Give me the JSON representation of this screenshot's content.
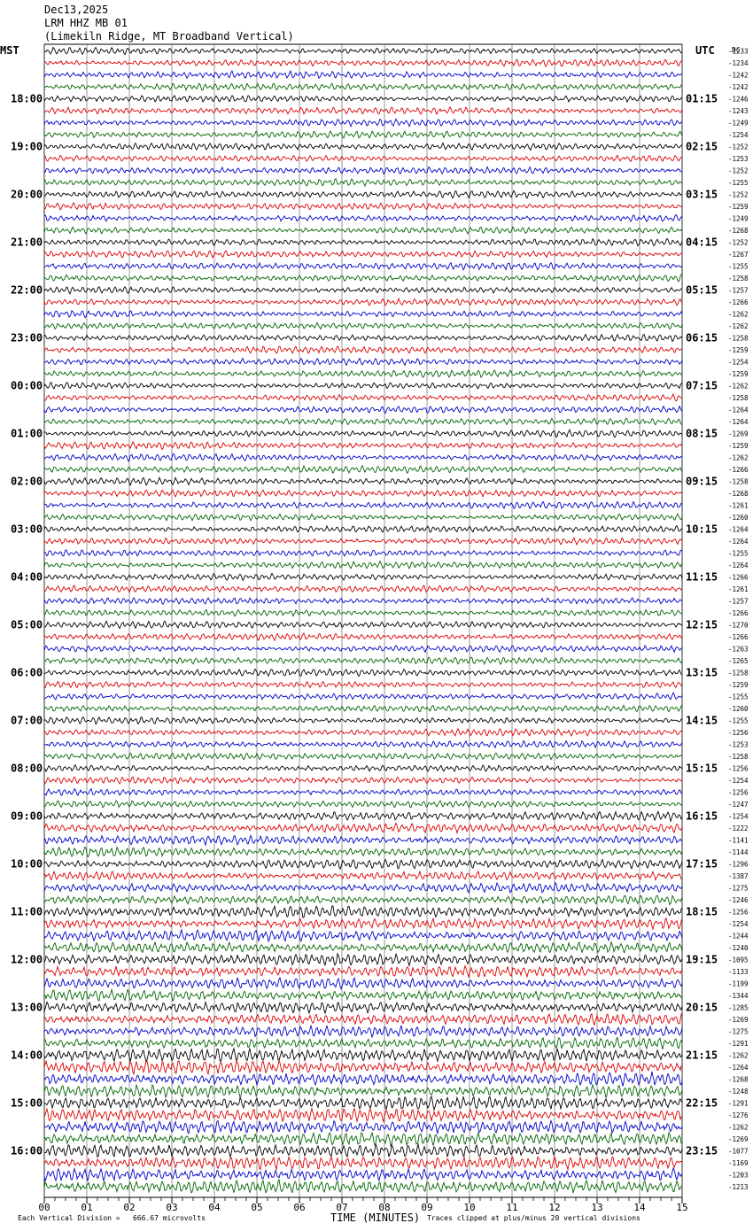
{
  "header": {
    "date": "Dec13,2025",
    "station": "LRM HHZ MB 01",
    "location": "(Limekiln Ridge, MT Broadband Vertical)"
  },
  "chart_data": {
    "type": "line",
    "title": "LRM HHZ MB 01",
    "left_zone_label": "MST",
    "right_zone_label": "UTC",
    "dc_label": "DC",
    "xlabel": "TIME (MINUTES)",
    "xlim": [
      0,
      15
    ],
    "x_ticks": [
      "00",
      "01",
      "02",
      "03",
      "04",
      "05",
      "06",
      "07",
      "08",
      "09",
      "10",
      "11",
      "12",
      "13",
      "14",
      "15"
    ],
    "left_hour_labels": [
      "18:00",
      "19:00",
      "20:00",
      "21:00",
      "22:00",
      "23:00",
      "00:00",
      "01:00",
      "02:00",
      "03:00",
      "04:00",
      "05:00",
      "06:00",
      "07:00",
      "08:00",
      "09:00",
      "10:00",
      "11:00",
      "12:00",
      "13:00",
      "14:00",
      "15:00",
      "16:00"
    ],
    "right_hour_labels": [
      "01:15",
      "02:15",
      "03:15",
      "04:15",
      "05:15",
      "06:15",
      "07:15",
      "08:15",
      "09:15",
      "10:15",
      "11:15",
      "12:15",
      "13:15",
      "14:15",
      "15:15",
      "16:15",
      "17:15",
      "18:15",
      "19:15",
      "20:15",
      "21:15",
      "22:15",
      "23:15"
    ],
    "trace_colors": [
      "#000000",
      "#dd0000",
      "#0000cc",
      "#006600"
    ],
    "dc_offsets": [
      "-1233",
      "-1234",
      "-1242",
      "-1242",
      "-1246",
      "-1243",
      "-1249",
      "-1254",
      "-1252",
      "-1253",
      "-1252",
      "-1255",
      "-1252",
      "-1259",
      "-1249",
      "-1268",
      "-1252",
      "-1267",
      "-1255",
      "-1258",
      "-1257",
      "-1266",
      "-1262",
      "-1262",
      "-1258",
      "-1259",
      "-1254",
      "-1259",
      "-1262",
      "-1258",
      "-1264",
      "-1264",
      "-1269",
      "-1259",
      "-1262",
      "-1266",
      "-1258",
      "-1268",
      "-1261",
      "-1260",
      "-1264",
      "-1264",
      "-1255",
      "-1264",
      "-1266",
      "-1261",
      "-1257",
      "-1266",
      "-1270",
      "-1266",
      "-1263",
      "-1265",
      "-1258",
      "-1259",
      "-1255",
      "-1260",
      "-1255",
      "-1256",
      "-1253",
      "-1258",
      "-1256",
      "-1254",
      "-1256",
      "-1247",
      "-1254",
      "-1222",
      "-1141",
      "-1144",
      "-1296",
      "-1387",
      "-1275",
      "-1246",
      "-1256",
      "-1254",
      "-1244",
      "-1240",
      "-1095",
      "-1133",
      "-1199",
      "-1344",
      "-1285",
      "-1269",
      "-1275",
      "-1291",
      "-1262",
      "-1264",
      "-1268",
      "-1248",
      "-1291",
      "-1276",
      "-1262",
      "-1269",
      "-1077",
      "-1169",
      "-1203",
      "-1213"
    ],
    "footer_scale_label": "Each Vertical Division =",
    "footer_scale_value": "666.67 microvolts",
    "footer_clip_note": "Traces clipped at plus/minus 20 vertical divisions"
  }
}
